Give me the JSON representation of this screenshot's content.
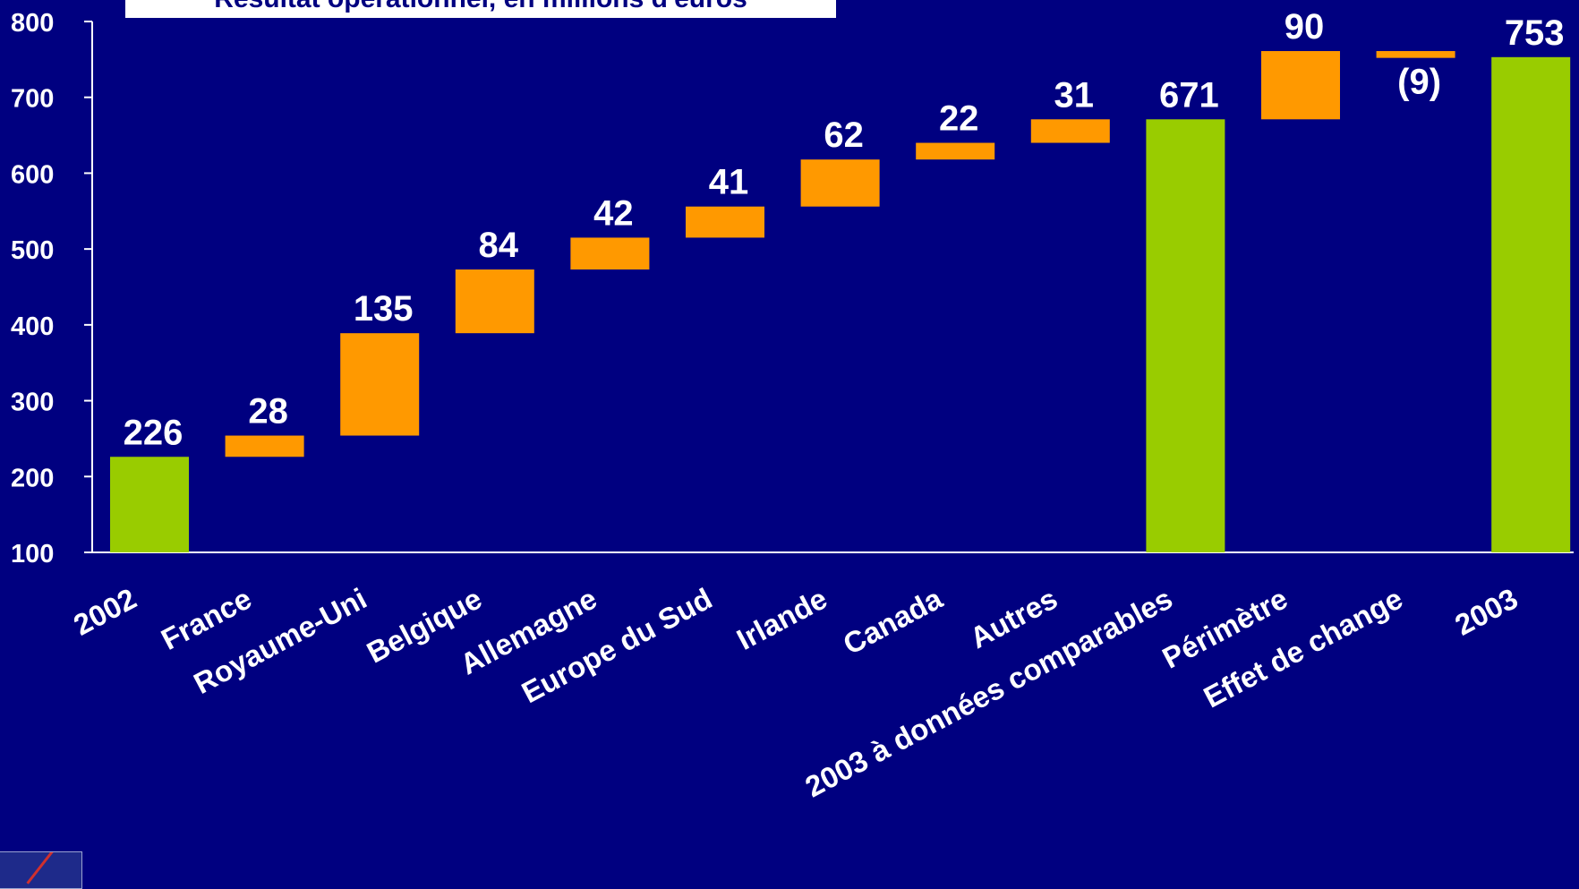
{
  "chart_data": {
    "type": "waterfall",
    "title": "Résultat opérationnel, en millions d'euros",
    "ylim": [
      100,
      800
    ],
    "yticks": [
      100,
      200,
      300,
      400,
      500,
      600,
      700,
      800
    ],
    "grid": false,
    "categories": [
      "2002",
      "France",
      "Royaume-Uni",
      "Belgique",
      "Allemagne",
      "Europe du Sud",
      "Irlande",
      "Canada",
      "Autres",
      "2003 à données comparables",
      "Périmètre",
      "Effet de change",
      "2003"
    ],
    "bars": [
      {
        "label": "2002",
        "kind": "total",
        "base": 0,
        "value": 226,
        "text": "226"
      },
      {
        "label": "France",
        "kind": "delta",
        "base": 226,
        "value": 28,
        "text": "28"
      },
      {
        "label": "Royaume-Uni",
        "kind": "delta",
        "base": 254,
        "value": 135,
        "text": "135"
      },
      {
        "label": "Belgique",
        "kind": "delta",
        "base": 389,
        "value": 84,
        "text": "84"
      },
      {
        "label": "Allemagne",
        "kind": "delta",
        "base": 473,
        "value": 42,
        "text": "42"
      },
      {
        "label": "Europe du Sud",
        "kind": "delta",
        "base": 515,
        "value": 41,
        "text": "41"
      },
      {
        "label": "Irlande",
        "kind": "delta",
        "base": 556,
        "value": 62,
        "text": "62"
      },
      {
        "label": "Canada",
        "kind": "delta",
        "base": 618,
        "value": 22,
        "text": "22"
      },
      {
        "label": "Autres",
        "kind": "delta",
        "base": 640,
        "value": 31,
        "text": "31"
      },
      {
        "label": "2003 à données comparables",
        "kind": "total",
        "base": 0,
        "value": 671,
        "text": "671"
      },
      {
        "label": "Périmètre",
        "kind": "delta",
        "base": 671,
        "value": 90,
        "text": "90"
      },
      {
        "label": "Effet de change",
        "kind": "delta",
        "base": 761,
        "value": -9,
        "text": "(9)"
      },
      {
        "label": "2003",
        "kind": "total",
        "base": 0,
        "value": 753,
        "text": "753"
      }
    ],
    "colors": {
      "background": "#000080",
      "total": "#99cc00",
      "delta": "#ff9900",
      "text": "#ffffff",
      "axis": "#ffffff"
    }
  },
  "logo_icon": "corporate-logo"
}
